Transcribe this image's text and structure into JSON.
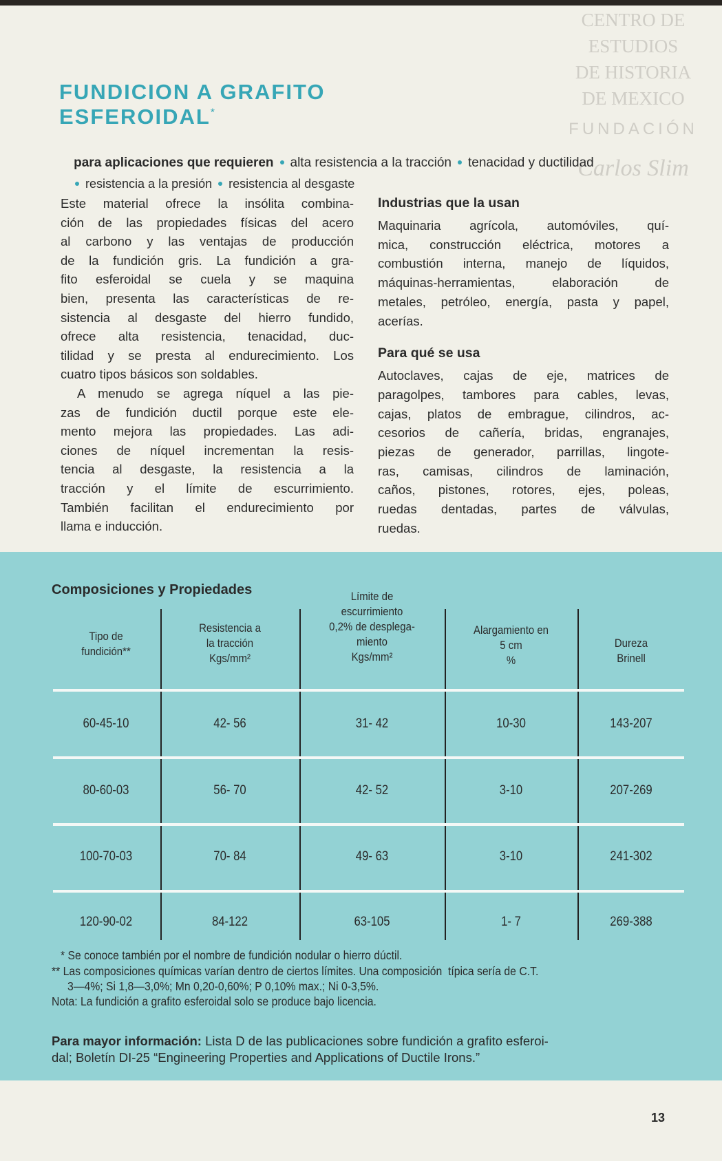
{
  "watermark": {
    "lines": [
      "CENTRO DE",
      "ESTUDIOS",
      "DE HISTORIA",
      "DE MEXICO"
    ],
    "foundation": "FUNDACIÓN",
    "signature": "Carlos Slim"
  },
  "header": {
    "title_lines": [
      "FUNDICION A GRAFITO",
      "ESFEROIDAL"
    ],
    "title_mark": "*",
    "lead": "para aplicaciones que requieren",
    "features": [
      "alta resistencia a la tracción",
      "tenacidad y ductilidad",
      "resistencia a la presión",
      "resistencia al desgaste"
    ]
  },
  "left_column": {
    "paragraphs": [
      [
        "Este material ofrece la insólita combina-",
        "ción de las propiedades físicas del acero",
        "al carbono y las ventajas de producción",
        "de la fundición gris. La fundición a gra-",
        "fito esferoidal se cuela y se maquina",
        "bien, presenta las características de re-",
        "sistencia al desgaste del hierro fundido,",
        "ofrece alta resistencia, tenacidad, duc-",
        "tilidad y se presta al endurecimiento. Los",
        "cuatro tipos básicos son soldables."
      ],
      [
        "A menudo se agrega níquel a las pie-",
        "zas de fundición ductil porque este ele-",
        "mento mejora las propiedades. Las adi-",
        "ciones de níquel incrementan la resis-",
        "tencia al desgaste, la resistencia a la",
        "tracción y el límite de escurrimiento.",
        "También facilitan el endurecimiento por",
        "llama e inducción."
      ]
    ]
  },
  "right_column": {
    "sections": [
      {
        "heading": "Industrias que la usan",
        "lines": [
          "Maquinaria agrícola, automóviles, quí-",
          "mica, construcción eléctrica, motores a",
          "combustión interna, manejo de líquidos,",
          "máquinas-herramientas, elaboración de",
          "metales, petróleo, energía, pasta y papel,",
          "acerías."
        ]
      },
      {
        "heading": "Para qué se usa",
        "lines": [
          "Autoclaves, cajas de eje, matrices de",
          "paragolpes, tambores para cables, levas,",
          "cajas, platos de embrague, cilindros, ac-",
          "cesorios de cañería, bridas, engranajes,",
          "piezas de generador, parrillas, lingote-",
          "ras, camisas, cilindros de laminación,",
          "caños, pistones, rotores, ejes, poleas,",
          "ruedas dentadas, partes de válvulas,",
          "ruedas."
        ]
      }
    ]
  },
  "table": {
    "title": "Composiciones y Propiedades",
    "headers": [
      [
        "Tipo de",
        "fundición**"
      ],
      [
        "Resistencia a",
        "la tracción",
        "Kgs/mm²"
      ],
      [
        "Límite de",
        "escurrimiento",
        "0,2% de desplega-",
        "miento",
        "Kgs/mm²"
      ],
      [
        "Alargamiento en",
        "5 cm",
        "%"
      ],
      [
        "Dureza",
        "Brinell"
      ]
    ],
    "rows": [
      [
        "60-45-10",
        "42- 56",
        "31- 42",
        "10-30",
        "143-207"
      ],
      [
        "80-60-03",
        "56- 70",
        "42- 52",
        "3-10",
        "207-269"
      ],
      [
        "100-70-03",
        "70- 84",
        "49- 63",
        "3-10",
        "241-302"
      ],
      [
        "120-90-02",
        "84-122",
        "63-105",
        "1- 7",
        "269-388"
      ]
    ]
  },
  "footnotes": [
    "* Se conoce también por el nombre de fundición nodular o hierro dúctil.",
    "** Las composiciones químicas varían dentro de ciertos límites. Una composición  típica sería de C.T.",
    "3—4%; Si 1,8—3,0%; Mn 0,20-0,60%; P 0,10% max.; Ni 0-3,5%.",
    "Nota: La fundición a grafito esferoidal solo se produce bajo licencia."
  ],
  "more_info": {
    "label": "Para mayor información:",
    "lines": [
      "Lista D de las publicaciones sobre fundición a grafito esferoi-",
      "dal; Boletín DI-25 “Engineering Properties and Applications of Ductile Irons.”"
    ]
  },
  "page_number": "13"
}
